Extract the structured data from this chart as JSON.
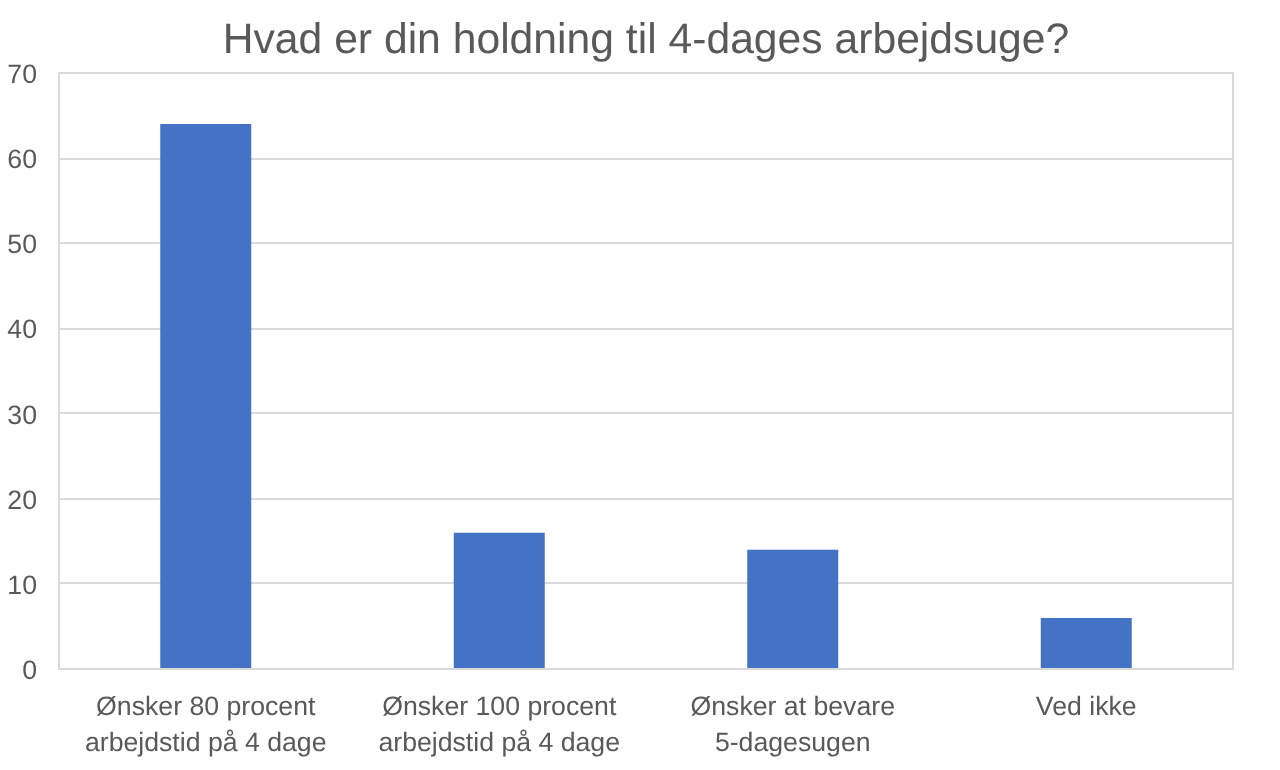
{
  "chart_data": {
    "type": "bar",
    "title": "Hvad er din holdning til 4-dages arbejdsuge?",
    "categories": [
      "Ønsker 80 procent arbejdstid på 4 dage",
      "Ønsker 100 procent arbejdstid på 4 dage",
      "Ønsker at bevare 5-dagesugen",
      "Ved ikke"
    ],
    "values": [
      64,
      16,
      14,
      6
    ],
    "color": "#4472c4",
    "ylim": [
      0,
      70
    ],
    "yticks": [
      0,
      10,
      20,
      30,
      40,
      50,
      60,
      70
    ],
    "grid": "y"
  }
}
